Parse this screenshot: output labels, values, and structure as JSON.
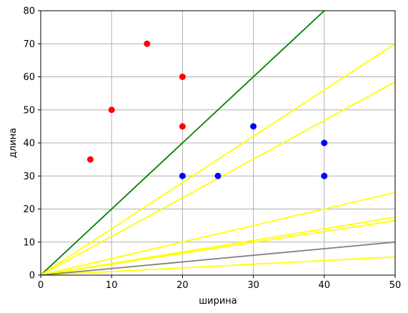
{
  "chart_data": {
    "type": "scatter",
    "title": "",
    "xlabel": "ширина",
    "ylabel": "длина",
    "xlim": [
      0,
      50
    ],
    "ylim": [
      0,
      80
    ],
    "xticks": [
      "0",
      "10",
      "20",
      "30",
      "40",
      "50"
    ],
    "yticks": [
      "0",
      "10",
      "20",
      "30",
      "40",
      "50",
      "60",
      "70",
      "80"
    ],
    "grid": true,
    "scatter_series": [
      {
        "color": "#ff0000",
        "points": [
          [
            7,
            35
          ],
          [
            10,
            50
          ],
          [
            15,
            70
          ],
          [
            20,
            60
          ],
          [
            20,
            45
          ]
        ]
      },
      {
        "color": "#0000ff",
        "points": [
          [
            20,
            30
          ],
          [
            25,
            30
          ],
          [
            30,
            45
          ],
          [
            40,
            40
          ],
          [
            40,
            30
          ]
        ]
      }
    ],
    "lines": [
      {
        "color": "#008000",
        "slope": 2.0
      },
      {
        "color": "#ffff00",
        "slope": 1.4
      },
      {
        "color": "#ffff00",
        "slope": 1.17
      },
      {
        "color": "#ffff00",
        "slope": 0.5
      },
      {
        "color": "#ffff00",
        "slope": 0.35
      },
      {
        "color": "#ffff00",
        "slope": 0.33
      },
      {
        "color": "#ffff00",
        "slope": 0.11
      },
      {
        "color": "#808080",
        "slope": 0.2
      }
    ]
  }
}
